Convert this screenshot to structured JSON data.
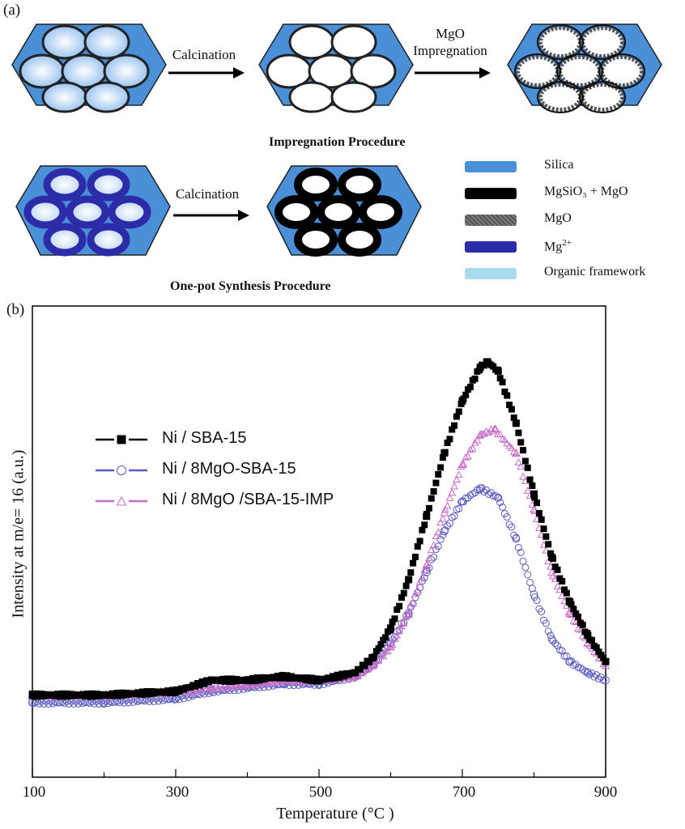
{
  "panel_a": {
    "label": "(a)",
    "impregnation": {
      "arrow1_label": "Calcination",
      "arrow2_label_line1": "MgO",
      "arrow2_label_line2": "Impregnation",
      "title": "Impregnation Procedure"
    },
    "one_pot": {
      "arrow_label": "Calcination",
      "title": "One-pot Synthesis Procedure"
    },
    "legend": [
      {
        "name": "Silica",
        "color": "#4a90d9"
      },
      {
        "name": "MgSiO₃ + MgO",
        "color": "#000000"
      },
      {
        "name": "MgO",
        "color": "#6a6a6a"
      },
      {
        "name": "Mg",
        "superscript": "2+",
        "color": "#2c2ca8"
      },
      {
        "name": "Organic framework",
        "color": "#a8dcec"
      }
    ]
  },
  "panel_b": {
    "label": "(b)"
  },
  "chart_data": {
    "type": "scatter",
    "title": "",
    "xlabel": "Temperature (°C )",
    "ylabel": "Intensity at m/e= 16 (a.u.)",
    "xlim": [
      100,
      900
    ],
    "ylim": [
      0,
      1
    ],
    "x_ticks": [
      "100",
      "300",
      "500",
      "700",
      "900"
    ],
    "legend_position": "upper-left",
    "series": [
      {
        "name": "Ni / SBA-15",
        "marker": "filled-square",
        "color": "#000000",
        "x": [
          100,
          200,
          300,
          350,
          400,
          450,
          500,
          550,
          575,
          600,
          625,
          650,
          675,
          700,
          725,
          735,
          750,
          775,
          800,
          825,
          850,
          875,
          900
        ],
        "y": [
          0.09,
          0.09,
          0.1,
          0.13,
          0.13,
          0.14,
          0.13,
          0.15,
          0.19,
          0.27,
          0.4,
          0.57,
          0.74,
          0.88,
          0.97,
          0.985,
          0.96,
          0.82,
          0.63,
          0.46,
          0.34,
          0.25,
          0.18
        ]
      },
      {
        "name": "Ni / 8MgO-SBA-15",
        "marker": "open-circle",
        "color": "#5b5bc0",
        "x": [
          100,
          200,
          300,
          350,
          400,
          450,
          500,
          550,
          575,
          600,
          625,
          650,
          675,
          700,
          725,
          750,
          775,
          800,
          825,
          850,
          875,
          900
        ],
        "y": [
          0.07,
          0.07,
          0.08,
          0.1,
          0.11,
          0.12,
          0.12,
          0.14,
          0.17,
          0.23,
          0.31,
          0.42,
          0.53,
          0.61,
          0.645,
          0.62,
          0.51,
          0.36,
          0.24,
          0.18,
          0.15,
          0.13
        ]
      },
      {
        "name": "Ni / 8MgO /SBA-15-IMP",
        "marker": "open-triangle",
        "color": "#c86ac8",
        "x": [
          100,
          200,
          300,
          350,
          400,
          450,
          500,
          550,
          575,
          600,
          625,
          650,
          675,
          700,
          725,
          745,
          775,
          800,
          825,
          850,
          875,
          900
        ],
        "y": [
          0.09,
          0.09,
          0.1,
          0.11,
          0.12,
          0.13,
          0.13,
          0.14,
          0.17,
          0.22,
          0.31,
          0.44,
          0.58,
          0.71,
          0.79,
          0.805,
          0.74,
          0.59,
          0.42,
          0.31,
          0.23,
          0.17
        ]
      }
    ]
  }
}
